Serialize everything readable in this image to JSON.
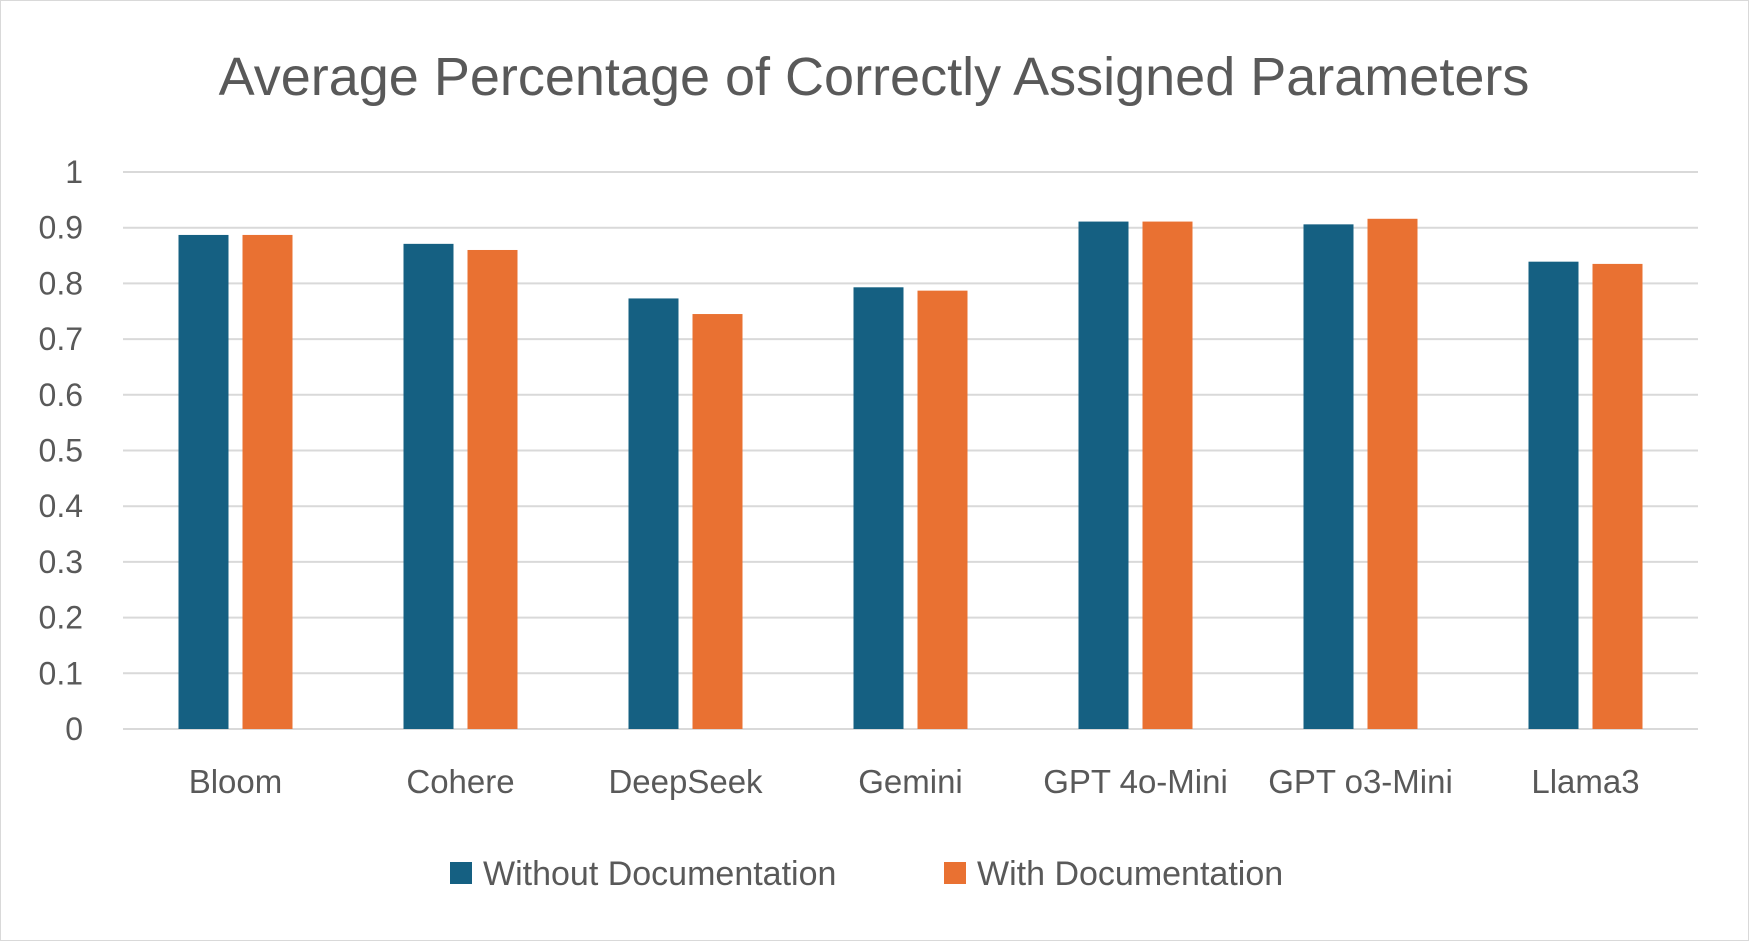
{
  "chart_data": {
    "type": "bar",
    "title": "Average Percentage of Correctly Assigned Parameters",
    "xlabel": "",
    "ylabel": "",
    "ylim": [
      0,
      1
    ],
    "yticks": [
      "0",
      "0.1",
      "0.2",
      "0.3",
      "0.4",
      "0.5",
      "0.6",
      "0.7",
      "0.8",
      "0.9",
      "1"
    ],
    "grid": true,
    "legend_position": "bottom",
    "categories": [
      "Bloom",
      "Cohere",
      "DeepSeek",
      "Gemini",
      "GPT 4o-Mini",
      "GPT o3-Mini",
      "Llama3"
    ],
    "series": [
      {
        "name": "Without Documentation",
        "color": "#156082",
        "values": [
          0.887,
          0.871,
          0.773,
          0.793,
          0.911,
          0.906,
          0.839
        ]
      },
      {
        "name": "With Documentation",
        "color": "#e97132",
        "values": [
          0.887,
          0.86,
          0.745,
          0.787,
          0.911,
          0.916,
          0.835
        ]
      }
    ]
  }
}
